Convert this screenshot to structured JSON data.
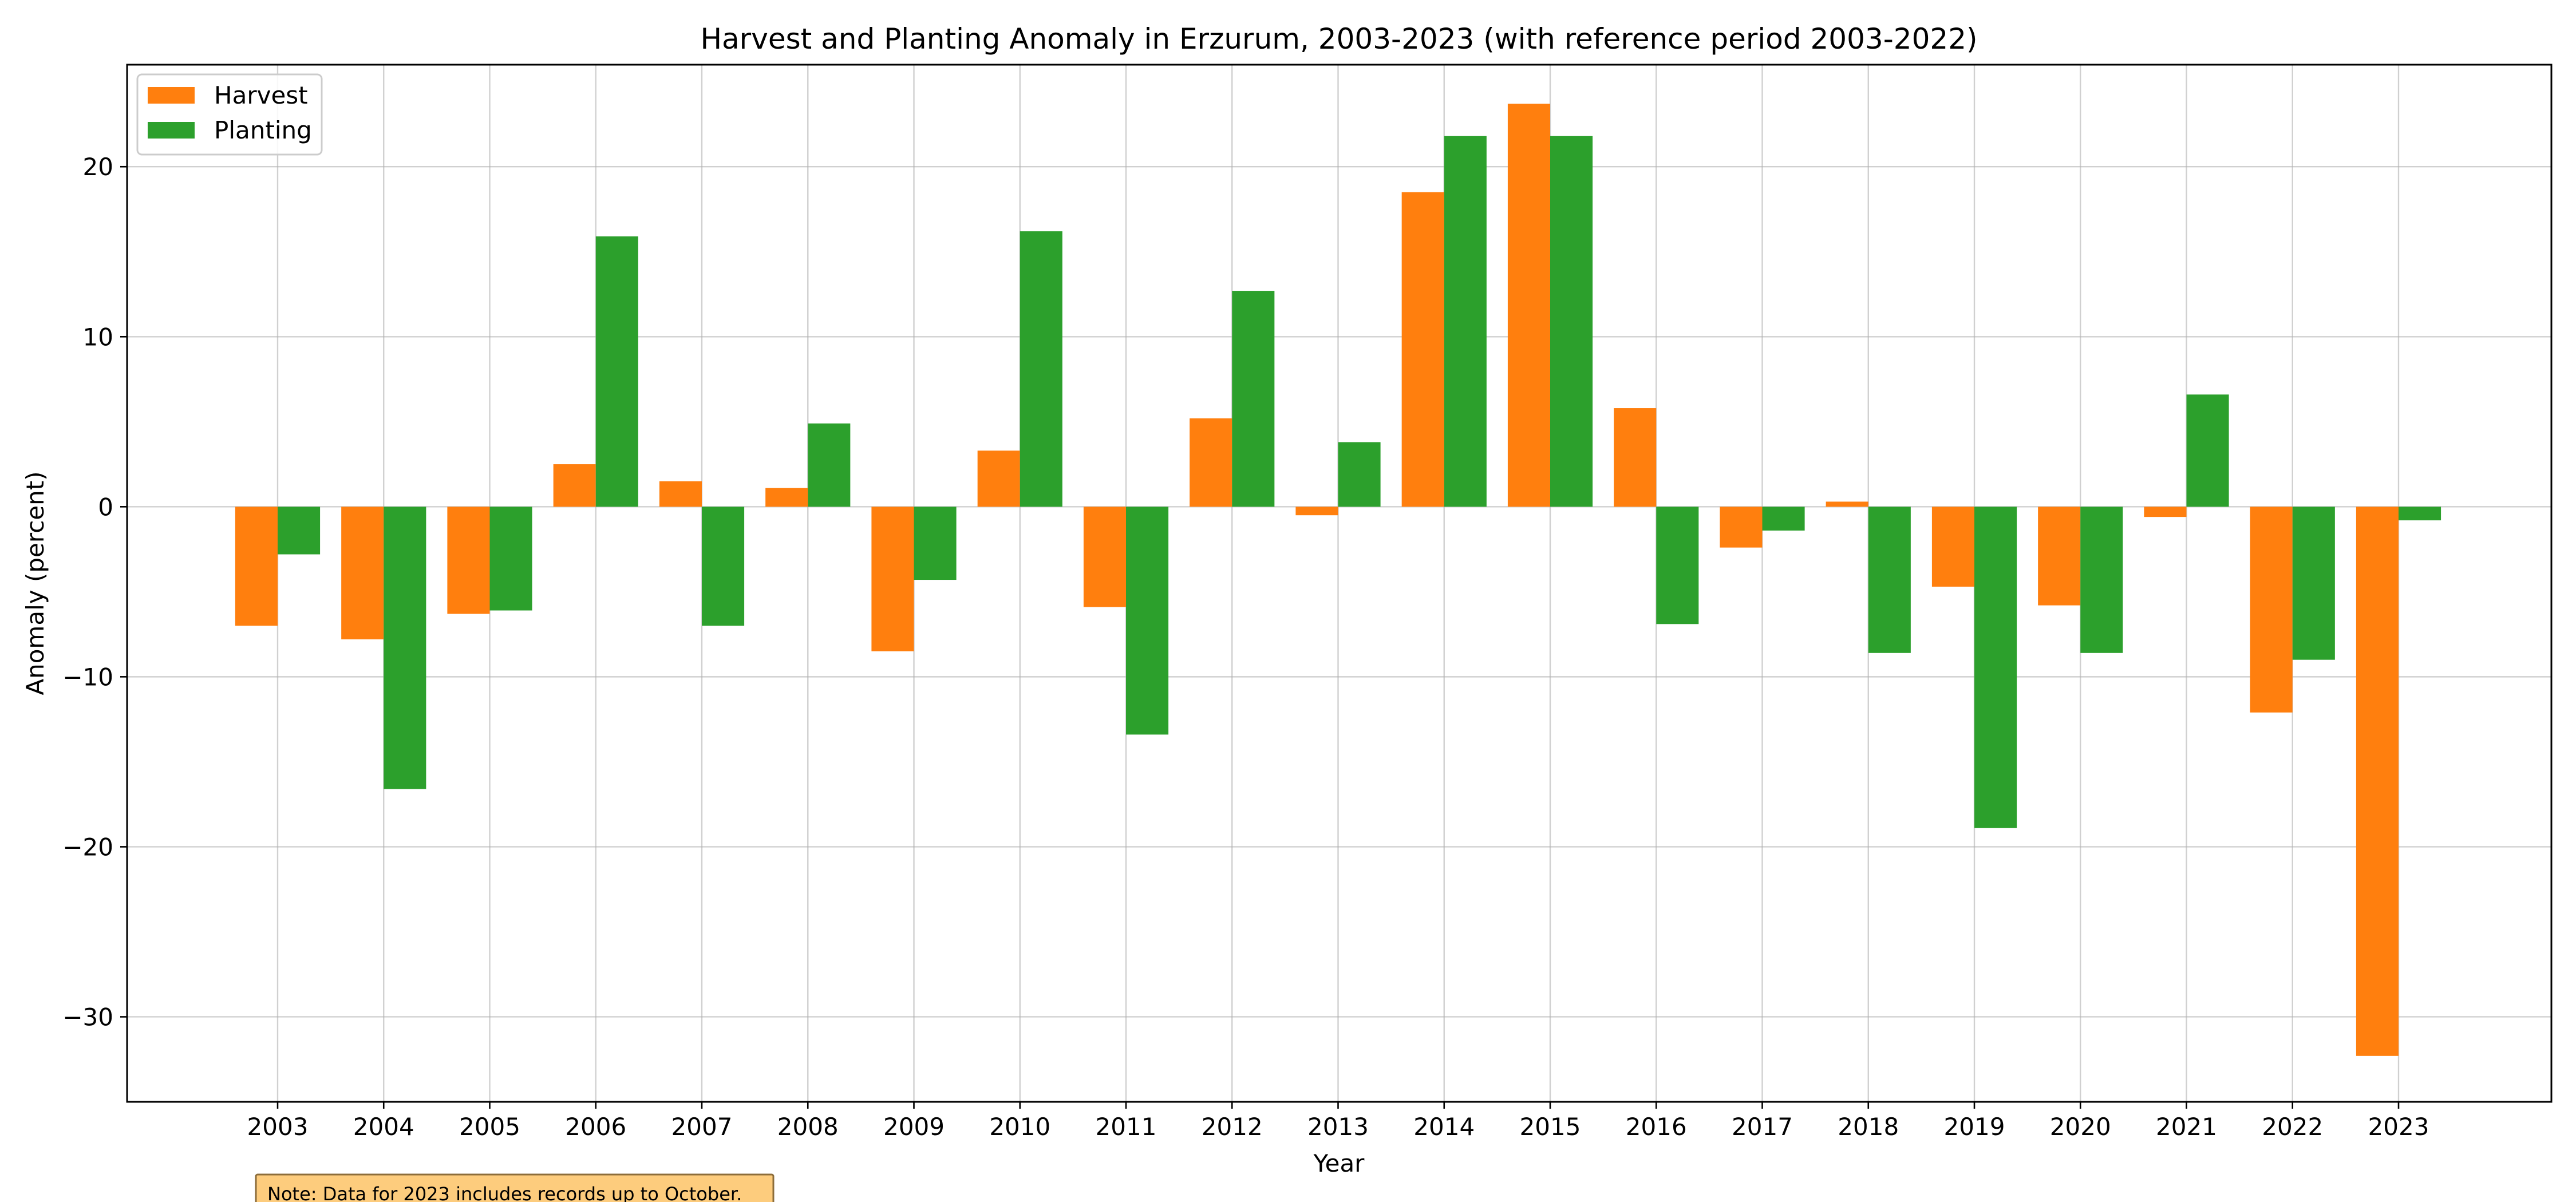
{
  "chart_data": {
    "type": "bar",
    "title": "Harvest and Planting Anomaly in Erzurum, 2003-2023 (with reference period 2003-2022)",
    "xlabel": "Year",
    "ylabel": "Anomaly (percent)",
    "categories": [
      "2003",
      "2004",
      "2005",
      "2006",
      "2007",
      "2008",
      "2009",
      "2010",
      "2011",
      "2012",
      "2013",
      "2014",
      "2015",
      "2016",
      "2017",
      "2018",
      "2019",
      "2020",
      "2021",
      "2022",
      "2023"
    ],
    "series": [
      {
        "name": "Harvest",
        "color": "#ff7f0e",
        "values": [
          -7.0,
          -7.8,
          -6.3,
          2.5,
          1.5,
          1.1,
          -8.5,
          3.3,
          -5.9,
          5.2,
          -0.5,
          18.5,
          23.7,
          5.8,
          -2.4,
          0.3,
          -4.7,
          -5.8,
          -0.6,
          -12.1,
          -32.3
        ]
      },
      {
        "name": "Planting",
        "color": "#2ca02c",
        "values": [
          -2.8,
          -16.6,
          -6.1,
          15.9,
          -7.0,
          4.9,
          -4.3,
          16.2,
          -13.4,
          12.7,
          3.8,
          21.8,
          21.8,
          -6.9,
          -1.4,
          -8.6,
          -18.9,
          -8.6,
          6.6,
          -9.0,
          -0.8
        ]
      }
    ],
    "ylim": [
      -35,
      26
    ],
    "yticks": [
      20,
      10,
      0,
      -10,
      -20,
      -30
    ],
    "ytick_labels": [
      "20",
      "10",
      "0",
      "−10",
      "−20",
      "−30"
    ],
    "grid": true,
    "legend_position": "upper-left"
  },
  "note": {
    "text": "Note: Data for 2023 includes records up to October.",
    "background": "#fdcc7d",
    "border": "#8c6d3a"
  }
}
